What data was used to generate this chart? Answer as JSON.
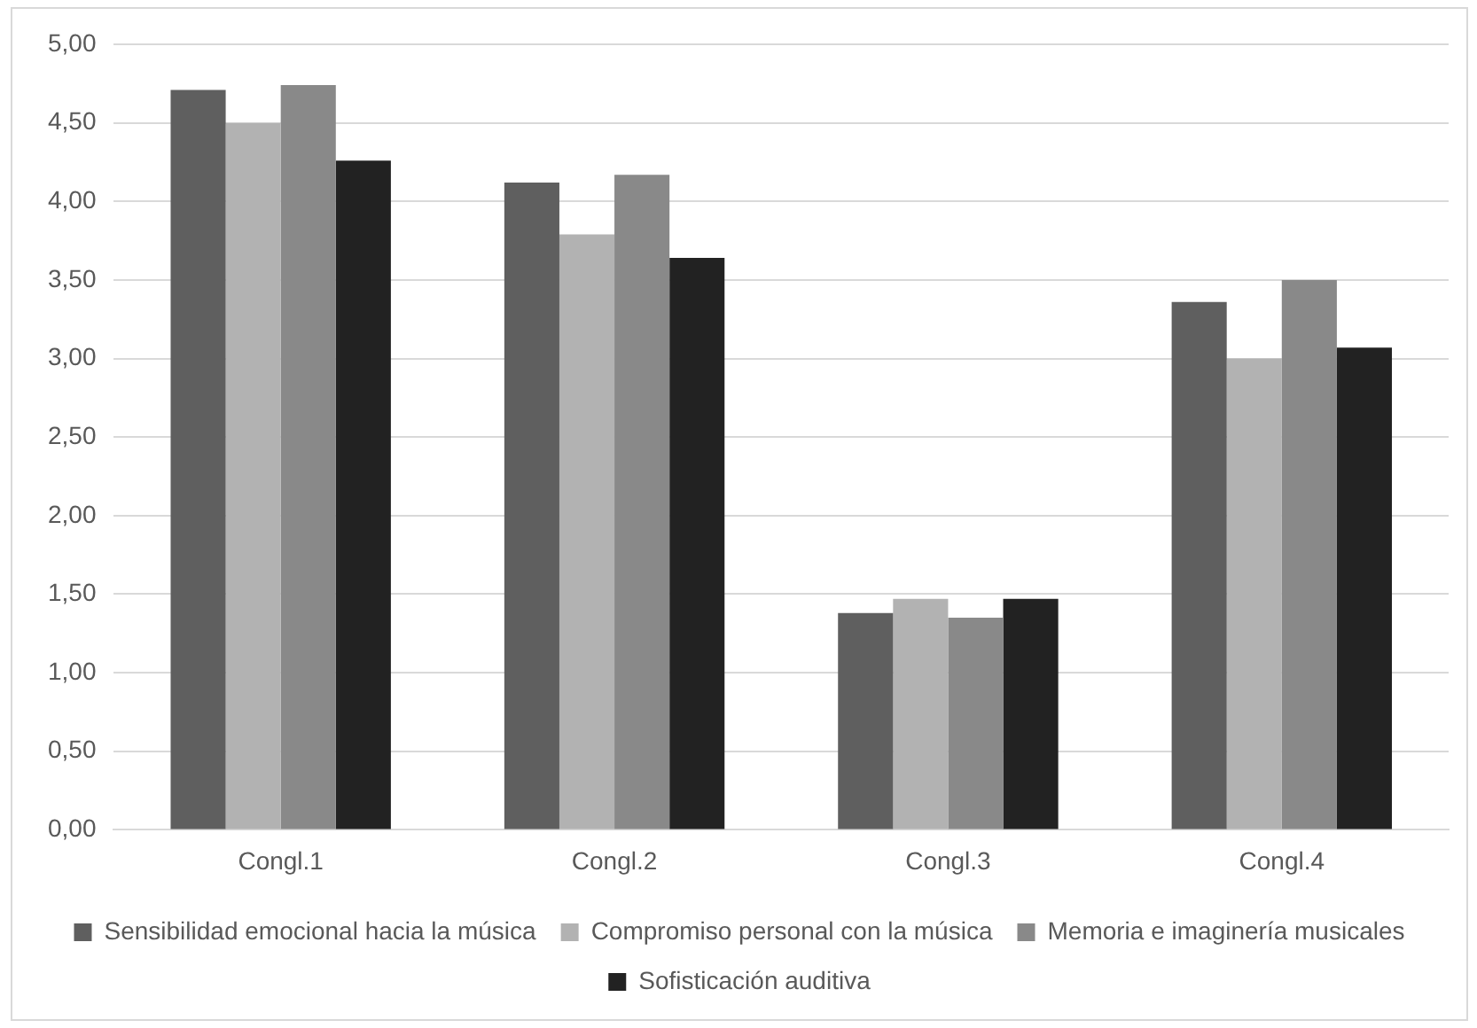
{
  "chart_data": {
    "type": "bar",
    "categories": [
      "Congl.1",
      "Congl.2",
      "Congl.3",
      "Congl.4"
    ],
    "series": [
      {
        "name": "Sensibilidad emocional hacia la música",
        "color": "#5f5f5f",
        "values": [
          4.71,
          4.12,
          1.38,
          3.36
        ]
      },
      {
        "name": "Compromiso personal con la música",
        "color": "#b2b2b2",
        "values": [
          4.5,
          3.79,
          1.47,
          3.0
        ]
      },
      {
        "name": "Memoria e imaginería musicales",
        "color": "#898989",
        "values": [
          4.74,
          4.17,
          1.35,
          3.5
        ]
      },
      {
        "name": "Sofisticación auditiva",
        "color": "#222222",
        "values": [
          4.26,
          3.64,
          1.47,
          3.07
        ]
      }
    ],
    "ylim": [
      0,
      5
    ],
    "yticks": [
      {
        "value": 0,
        "label": "0,00"
      },
      {
        "value": 0.5,
        "label": "0,50"
      },
      {
        "value": 1,
        "label": "1,00"
      },
      {
        "value": 1.5,
        "label": "1,50"
      },
      {
        "value": 2,
        "label": "2,00"
      },
      {
        "value": 2.5,
        "label": "2,50"
      },
      {
        "value": 3,
        "label": "3,00"
      },
      {
        "value": 3.5,
        "label": "3,50"
      },
      {
        "value": 4,
        "label": "4,00"
      },
      {
        "value": 4.5,
        "label": "4,50"
      },
      {
        "value": 5,
        "label": "5,00"
      }
    ],
    "grid": "y",
    "legend": "bottom"
  }
}
